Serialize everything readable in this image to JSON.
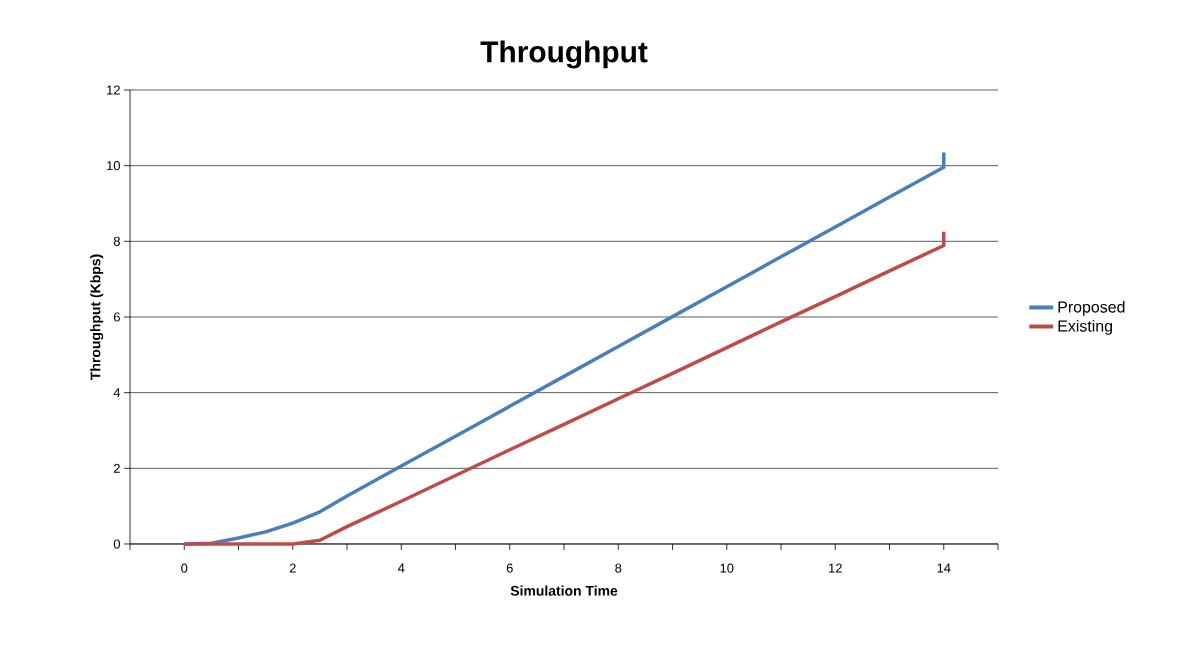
{
  "chart_data": {
    "type": "line",
    "title": "Throughput",
    "xlabel": "Simulation Time",
    "ylabel": "Throughput (Kbps)",
    "xlim": [
      -1,
      15
    ],
    "ylim": [
      0,
      12
    ],
    "xticks": [
      {
        "value": -1,
        "label": null
      },
      0,
      {
        "value": 1,
        "label": null
      },
      2,
      {
        "value": 3,
        "label": null
      },
      4,
      {
        "value": 5,
        "label": null
      },
      6,
      {
        "value": 7,
        "label": null
      },
      8,
      {
        "value": 9,
        "label": null
      },
      10,
      {
        "value": 11,
        "label": null
      },
      12,
      {
        "value": 13,
        "label": null
      },
      14,
      {
        "value": 15,
        "label": null
      }
    ],
    "yticks": [
      0,
      2,
      4,
      6,
      8,
      10,
      12
    ],
    "grid": "y",
    "legend": "right",
    "marker": "none",
    "line_style": "solid",
    "series": [
      {
        "name": "Proposed",
        "color": "#4a7ebb",
        "x": [
          0,
          0.5,
          1,
          1.5,
          2,
          2.5,
          3,
          4,
          5,
          6,
          7,
          8,
          9,
          10,
          11,
          12,
          13,
          14,
          14
        ],
        "values": [
          0,
          0.02,
          0.16,
          0.32,
          0.55,
          0.85,
          1.27,
          2.06,
          2.85,
          3.64,
          4.43,
          5.22,
          6.01,
          6.8,
          7.59,
          8.38,
          9.17,
          9.96,
          10.35
        ]
      },
      {
        "name": "Existing",
        "color": "#be4b48",
        "x": [
          0,
          0.5,
          1,
          1.5,
          2,
          2.5,
          3,
          4,
          5,
          6,
          7,
          8,
          9,
          10,
          11,
          12,
          13,
          14,
          14
        ],
        "values": [
          0,
          0,
          0,
          0,
          0,
          0.1,
          0.46,
          1.13,
          1.81,
          2.49,
          3.16,
          3.84,
          4.51,
          5.19,
          5.87,
          6.54,
          7.22,
          7.89,
          8.25
        ]
      }
    ]
  }
}
